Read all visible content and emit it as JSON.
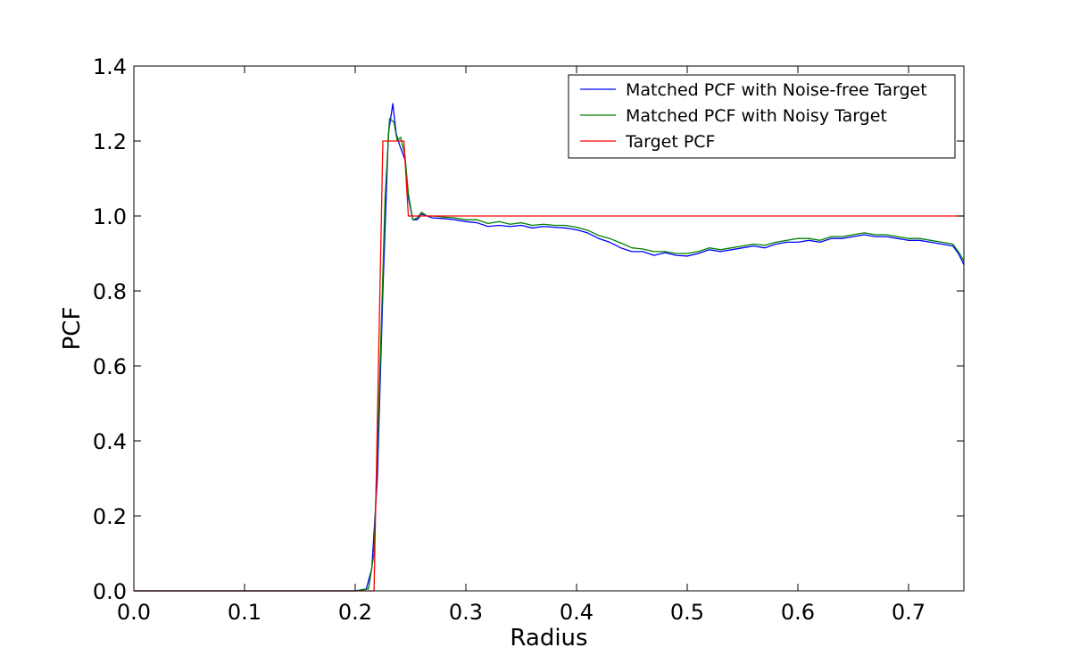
{
  "chart_data": {
    "type": "line",
    "xlabel": "Radius",
    "ylabel": "PCF",
    "xlim": [
      0.0,
      0.75
    ],
    "ylim": [
      0.0,
      1.4
    ],
    "xticks": [
      "0.0",
      "0.1",
      "0.2",
      "0.3",
      "0.4",
      "0.5",
      "0.6",
      "0.7"
    ],
    "yticks": [
      "0.0",
      "0.2",
      "0.4",
      "0.6",
      "0.8",
      "1.0",
      "1.2",
      "1.4"
    ],
    "grid": false,
    "legend": "top-right",
    "series": [
      {
        "name": "Matched PCF with Noise-free Target",
        "color": "#0000ff",
        "points": [
          [
            0.0,
            0.0
          ],
          [
            0.2,
            0.0
          ],
          [
            0.21,
            0.005
          ],
          [
            0.215,
            0.06
          ],
          [
            0.22,
            0.3
          ],
          [
            0.225,
            0.8
          ],
          [
            0.23,
            1.22
          ],
          [
            0.234,
            1.3
          ],
          [
            0.237,
            1.22
          ],
          [
            0.24,
            1.19
          ],
          [
            0.245,
            1.15
          ],
          [
            0.248,
            1.05
          ],
          [
            0.252,
            0.99
          ],
          [
            0.256,
            0.99
          ],
          [
            0.26,
            1.005
          ],
          [
            0.265,
            1.0
          ],
          [
            0.27,
            0.995
          ],
          [
            0.28,
            0.993
          ],
          [
            0.29,
            0.99
          ],
          [
            0.3,
            0.985
          ],
          [
            0.31,
            0.982
          ],
          [
            0.32,
            0.972
          ],
          [
            0.33,
            0.975
          ],
          [
            0.34,
            0.972
          ],
          [
            0.35,
            0.975
          ],
          [
            0.36,
            0.968
          ],
          [
            0.37,
            0.972
          ],
          [
            0.38,
            0.97
          ],
          [
            0.39,
            0.968
          ],
          [
            0.4,
            0.963
          ],
          [
            0.41,
            0.955
          ],
          [
            0.42,
            0.94
          ],
          [
            0.43,
            0.93
          ],
          [
            0.44,
            0.915
          ],
          [
            0.45,
            0.905
          ],
          [
            0.46,
            0.905
          ],
          [
            0.47,
            0.895
          ],
          [
            0.48,
            0.902
          ],
          [
            0.49,
            0.895
          ],
          [
            0.5,
            0.893
          ],
          [
            0.51,
            0.9
          ],
          [
            0.52,
            0.91
          ],
          [
            0.53,
            0.905
          ],
          [
            0.54,
            0.91
          ],
          [
            0.55,
            0.915
          ],
          [
            0.56,
            0.92
          ],
          [
            0.57,
            0.915
          ],
          [
            0.58,
            0.925
          ],
          [
            0.59,
            0.93
          ],
          [
            0.6,
            0.93
          ],
          [
            0.61,
            0.935
          ],
          [
            0.62,
            0.93
          ],
          [
            0.63,
            0.94
          ],
          [
            0.64,
            0.94
          ],
          [
            0.65,
            0.945
          ],
          [
            0.66,
            0.95
          ],
          [
            0.67,
            0.945
          ],
          [
            0.68,
            0.945
          ],
          [
            0.69,
            0.94
          ],
          [
            0.7,
            0.935
          ],
          [
            0.71,
            0.935
          ],
          [
            0.72,
            0.93
          ],
          [
            0.73,
            0.925
          ],
          [
            0.74,
            0.92
          ],
          [
            0.745,
            0.9
          ],
          [
            0.75,
            0.87
          ]
        ]
      },
      {
        "name": "Matched PCF with Noisy Target",
        "color": "#008000",
        "points": [
          [
            0.0,
            0.0
          ],
          [
            0.2,
            0.0
          ],
          [
            0.212,
            0.005
          ],
          [
            0.217,
            0.1
          ],
          [
            0.222,
            0.55
          ],
          [
            0.227,
            1.05
          ],
          [
            0.231,
            1.26
          ],
          [
            0.235,
            1.25
          ],
          [
            0.238,
            1.2
          ],
          [
            0.241,
            1.21
          ],
          [
            0.245,
            1.16
          ],
          [
            0.248,
            1.06
          ],
          [
            0.252,
            0.99
          ],
          [
            0.256,
            0.995
          ],
          [
            0.26,
            1.01
          ],
          [
            0.265,
            1.0
          ],
          [
            0.27,
            1.0
          ],
          [
            0.28,
            0.997
          ],
          [
            0.29,
            0.995
          ],
          [
            0.3,
            0.99
          ],
          [
            0.31,
            0.99
          ],
          [
            0.32,
            0.98
          ],
          [
            0.33,
            0.985
          ],
          [
            0.34,
            0.978
          ],
          [
            0.35,
            0.982
          ],
          [
            0.36,
            0.975
          ],
          [
            0.37,
            0.978
          ],
          [
            0.38,
            0.975
          ],
          [
            0.39,
            0.975
          ],
          [
            0.4,
            0.97
          ],
          [
            0.41,
            0.962
          ],
          [
            0.42,
            0.948
          ],
          [
            0.43,
            0.94
          ],
          [
            0.44,
            0.928
          ],
          [
            0.45,
            0.915
          ],
          [
            0.46,
            0.912
          ],
          [
            0.47,
            0.905
          ],
          [
            0.48,
            0.905
          ],
          [
            0.49,
            0.9
          ],
          [
            0.5,
            0.9
          ],
          [
            0.51,
            0.905
          ],
          [
            0.52,
            0.915
          ],
          [
            0.53,
            0.91
          ],
          [
            0.54,
            0.915
          ],
          [
            0.55,
            0.92
          ],
          [
            0.56,
            0.925
          ],
          [
            0.57,
            0.922
          ],
          [
            0.58,
            0.93
          ],
          [
            0.59,
            0.935
          ],
          [
            0.6,
            0.94
          ],
          [
            0.61,
            0.94
          ],
          [
            0.62,
            0.935
          ],
          [
            0.63,
            0.945
          ],
          [
            0.64,
            0.945
          ],
          [
            0.65,
            0.95
          ],
          [
            0.66,
            0.955
          ],
          [
            0.67,
            0.95
          ],
          [
            0.68,
            0.95
          ],
          [
            0.69,
            0.945
          ],
          [
            0.7,
            0.94
          ],
          [
            0.71,
            0.94
          ],
          [
            0.72,
            0.935
          ],
          [
            0.73,
            0.93
          ],
          [
            0.74,
            0.925
          ],
          [
            0.745,
            0.905
          ],
          [
            0.75,
            0.88
          ]
        ]
      },
      {
        "name": "Target PCF",
        "color": "#ff0000",
        "points": [
          [
            0.0,
            0.0
          ],
          [
            0.217,
            0.0
          ],
          [
            0.225,
            1.2
          ],
          [
            0.244,
            1.2
          ],
          [
            0.248,
            1.0
          ],
          [
            0.75,
            1.0
          ]
        ]
      }
    ]
  }
}
